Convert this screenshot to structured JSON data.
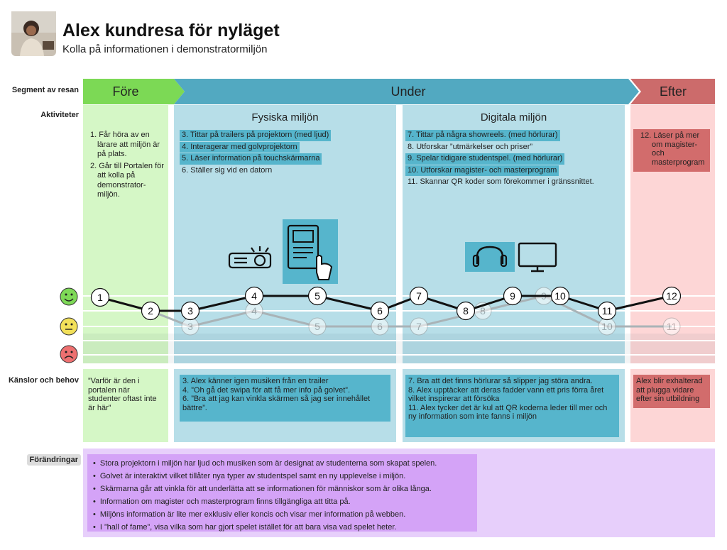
{
  "header": {
    "title": "Alex kundresa för nyläget",
    "subtitle": "Kolla på informationen i demonstratormiljön"
  },
  "row_labels": [
    "Segment av resan",
    "Aktiviteter",
    "Känslor och behov",
    "Förändringar"
  ],
  "segments": [
    "Före",
    "Under",
    "Efter"
  ],
  "activities": {
    "fore": [
      "1. Får höra av en lärare att miljön är på plats.",
      "2. Går till Portalen för att kolla på demonstrator-miljön."
    ],
    "fysiska": {
      "heading": "Fysiska miljön",
      "items": [
        "3. Tittar på trailers på projektorn (med ljud)",
        "4. Interagerar med golvprojektorn",
        "5. Läser information på touchskärmarna",
        "6. Ställer sig vid en datorn"
      ]
    },
    "digitala": {
      "heading": "Digitala miljön",
      "items": [
        "7. Tittar på några showreels. (med hörlurar)",
        "8. Utforskar ”utmärkelser och priser”",
        "9. Spelar tidigare studentspel. (med hörlurar)",
        "10. Utforskar magister- och masterprogram",
        "11. Skannar QR koder som förekommer i gränssnittet."
      ]
    },
    "efter": "12. Läser på mer om magister- och masterprogram"
  },
  "emotion_points": {
    "current": [
      1,
      2,
      3,
      4,
      5,
      6,
      7,
      8,
      9,
      10,
      11,
      12
    ],
    "previous": [
      3,
      4,
      5,
      6,
      7,
      8,
      9,
      10,
      11
    ]
  },
  "feelings": {
    "fore": "”Varför är den i portalen när studenter oftast inte är här”",
    "fysiska": [
      "3. Alex känner igen musiken från en trailer",
      "4. ”Oh gå det swipa för att få mer info på golvet”.",
      "6. ”Bra att jag kan vinkla skärmen så jag ser innehållet bättre”."
    ],
    "digitala": [
      "7. Bra att det finns hörlurar så slipper jag störa andra.",
      "8. Alex upptäcker att deras fadder vann ett pris förra året vilket inspirerar att försöka",
      "11. Alex tycker det är kul att QR koderna leder till mer och ny information som inte fanns i miljön"
    ],
    "efter": "Alex blir exhalterad att plugga vidare efter sin utbildning"
  },
  "changes": [
    "Stora projektorn i miljön har ljud och musiken som är designat av studenterna som skapat spelen.",
    "Golvet är interaktivt vilket tillåter nya typer av studentspel samt en ny upplevelse i miljön.",
    "Skärmarna går att vinkla för att underlätta att se informationen för människor som är olika långa.",
    "Information om magister och masterprogram finns tillgängliga att titta på.",
    "Miljöns information är lite mer exklusiv eller koncis och visar mer information på webben.",
    "I ”hall of fame”, visa vilka som har gjort spelet istället för att bara visa vad spelet heter."
  ]
}
